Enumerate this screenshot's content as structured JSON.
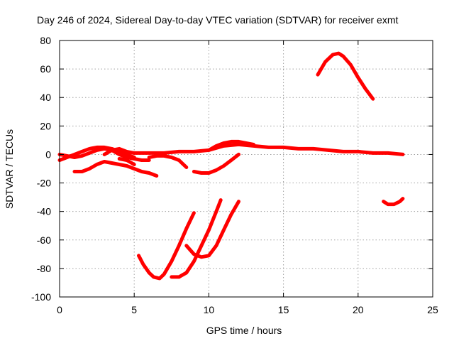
{
  "chart_data": {
    "type": "line",
    "title": "Day 246 of 2024, Sidereal Day-to-day VTEC variation (SDTVAR) for receiver exmt",
    "xlabel": "GPS time / hours",
    "ylabel": "SDTVAR / TECUs",
    "xlim": [
      0,
      25
    ],
    "ylim": [
      -100,
      80
    ],
    "xticks": [
      0,
      5,
      10,
      15,
      20,
      25
    ],
    "yticks": [
      -100,
      -80,
      -60,
      -40,
      -20,
      0,
      20,
      40,
      60,
      80
    ],
    "xtick_labels": [
      "0",
      "5",
      "10",
      "15",
      "20",
      "25"
    ],
    "ytick_labels": [
      "-100",
      "-80",
      "-60",
      "-40",
      "-20",
      "0",
      "20",
      "40",
      "60",
      "80"
    ],
    "grid": true,
    "legend": "none",
    "color": "#ff0000",
    "series": [
      {
        "name": "s1",
        "x": [
          0,
          0.5,
          1,
          1.5,
          2,
          2.5,
          3,
          3.5,
          4,
          4.5,
          5
        ],
        "y": [
          -4,
          -2,
          0,
          2,
          4,
          5,
          5,
          4,
          2,
          0,
          -2
        ]
      },
      {
        "name": "s2",
        "x": [
          0,
          0.5,
          1,
          1.5,
          2,
          2.5,
          3,
          3.5,
          4,
          4.5,
          5,
          5.5,
          6
        ],
        "y": [
          0,
          -1,
          -2,
          -1,
          1,
          3,
          4,
          3,
          0,
          -2,
          -3,
          -4,
          -4
        ]
      },
      {
        "name": "s3",
        "x": [
          1,
          1.5,
          2,
          2.5,
          3,
          3.5,
          4,
          4.5,
          5,
          5.5,
          6,
          6.5
        ],
        "y": [
          -12,
          -12,
          -10,
          -7,
          -5,
          -6,
          -7,
          -8,
          -10,
          -12,
          -13,
          -15
        ]
      },
      {
        "name": "s4",
        "x": [
          3,
          3.5,
          4,
          4.5,
          5
        ],
        "y": [
          0,
          3,
          4,
          2,
          1
        ]
      },
      {
        "name": "s5",
        "x": [
          4,
          4.5,
          5
        ],
        "y": [
          -3,
          -4,
          -7
        ]
      },
      {
        "name": "s6",
        "x": [
          5,
          6,
          7,
          8,
          9,
          10,
          11,
          12,
          13,
          14,
          15,
          16,
          17,
          18,
          19,
          20,
          21,
          22,
          23
        ],
        "y": [
          1,
          1,
          1,
          2,
          2,
          3,
          6,
          7,
          6,
          5,
          5,
          4,
          4,
          3,
          2,
          2,
          1,
          1,
          0
        ]
      },
      {
        "name": "s7",
        "x": [
          6,
          6.5,
          7,
          7.5,
          8,
          8.5
        ],
        "y": [
          -2,
          -1,
          -1,
          -2,
          -4,
          -9
        ]
      },
      {
        "name": "s8",
        "x": [
          9,
          9.5,
          10,
          10.5,
          11,
          11.5,
          12
        ],
        "y": [
          -12,
          -13,
          -13,
          -11,
          -8,
          -4,
          0
        ]
      },
      {
        "name": "s9",
        "x": [
          10,
          10.5,
          11,
          11.5,
          12,
          12.5,
          13
        ],
        "y": [
          3,
          6,
          8,
          9,
          9,
          8,
          7
        ]
      },
      {
        "name": "s10",
        "x": [
          5.3,
          5.6,
          6,
          6.3,
          6.7,
          7,
          7.5,
          8,
          8.5,
          9
        ],
        "y": [
          -71,
          -77,
          -83,
          -86,
          -87,
          -84,
          -75,
          -64,
          -52,
          -41
        ]
      },
      {
        "name": "s11",
        "x": [
          7.5,
          8,
          8.5,
          9,
          9.5,
          10,
          10.5,
          10.8
        ],
        "y": [
          -86,
          -86,
          -83,
          -75,
          -64,
          -53,
          -40,
          -32
        ]
      },
      {
        "name": "s12",
        "x": [
          8.5,
          9,
          9.5,
          10,
          10.5,
          11,
          11.5,
          12
        ],
        "y": [
          -64,
          -70,
          -72,
          -71,
          -64,
          -53,
          -42,
          -33
        ]
      },
      {
        "name": "s13",
        "x": [
          17.3,
          17.8,
          18.3,
          18.7,
          19,
          19.5,
          20,
          20.5,
          21
        ],
        "y": [
          56,
          65,
          70,
          71,
          69,
          63,
          54,
          46,
          39
        ]
      },
      {
        "name": "s14",
        "x": [
          21.7,
          22,
          22.4,
          22.8,
          23
        ],
        "y": [
          -33,
          -35,
          -35,
          -33,
          -31
        ]
      }
    ]
  }
}
